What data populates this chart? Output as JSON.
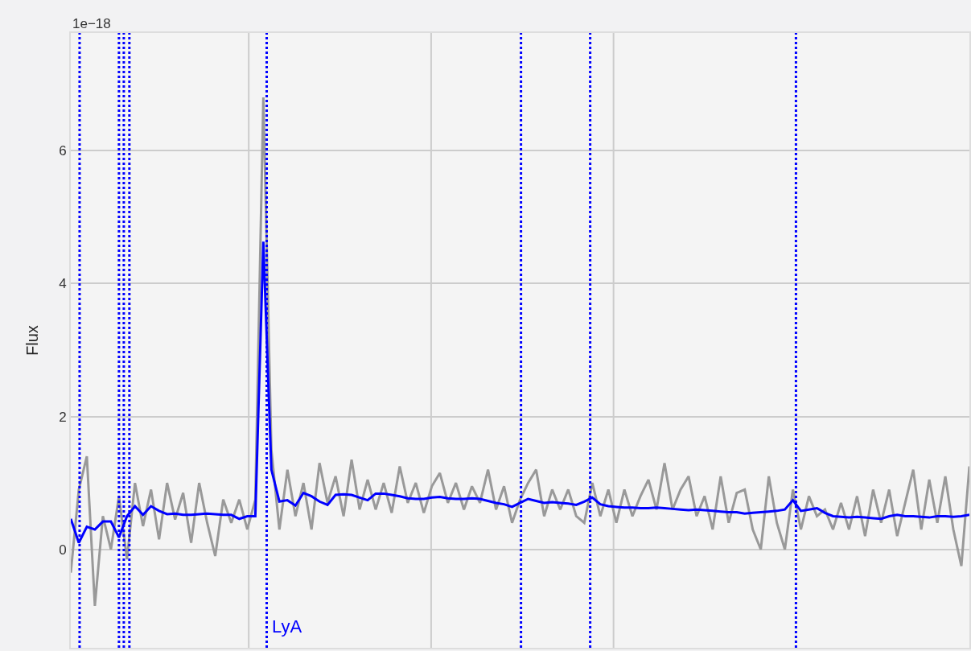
{
  "chart_data": {
    "type": "line",
    "ylabel": "Flux",
    "annotations": [
      "1e−18"
    ],
    "categories": [
      null,
      null,
      null,
      null,
      null,
      null,
      null,
      null,
      null,
      null,
      null,
      null,
      null,
      null,
      null,
      null,
      null,
      null,
      null,
      null,
      null,
      null,
      null,
      null,
      null,
      null,
      null,
      null,
      null,
      null,
      null,
      null,
      null,
      null,
      null,
      null,
      null,
      null,
      null,
      null,
      null,
      null,
      null,
      null,
      null,
      null,
      null,
      null,
      null,
      null,
      null,
      null,
      null,
      null,
      null,
      null,
      null,
      null,
      null,
      null,
      null,
      null,
      null,
      null,
      null,
      null,
      null,
      null,
      null,
      null,
      null,
      null,
      null,
      null,
      null,
      null,
      null,
      null,
      null,
      null,
      null,
      null,
      null,
      null,
      null,
      null,
      null,
      null,
      null,
      null,
      null,
      null,
      null,
      null,
      null,
      null,
      null,
      null,
      null,
      null,
      null,
      null,
      null,
      null,
      null,
      null,
      null,
      null,
      null,
      null,
      null,
      null,
      null
    ],
    "ylim": [
      -1.48,
      7.77
    ],
    "yticks": [
      0,
      2,
      4,
      6
    ],
    "tick_labels": "y",
    "grid": true,
    "line_style": "solid",
    "series": [
      {
        "color": "#999999",
        "values": [
          -0.35,
          0.9,
          1.4,
          -0.85,
          0.5,
          0.0,
          0.8,
          -0.15,
          1.0,
          0.35,
          0.9,
          0.15,
          1.0,
          0.45,
          0.85,
          0.1,
          1.0,
          0.4,
          -0.1,
          0.75,
          0.4,
          0.75,
          0.3,
          0.75,
          6.8,
          1.5,
          0.3,
          1.2,
          0.5,
          1.0,
          0.3,
          1.3,
          0.7,
          1.1,
          0.5,
          1.35,
          0.6,
          1.05,
          0.6,
          1.0,
          0.55,
          1.25,
          0.7,
          1.0,
          0.55,
          0.95,
          1.15,
          0.7,
          1.0,
          0.6,
          0.95,
          0.7,
          1.2,
          0.6,
          0.95,
          0.4,
          0.75,
          1.0,
          1.2,
          0.5,
          0.9,
          0.6,
          0.9,
          0.5,
          0.4,
          1.0,
          0.5,
          0.9,
          0.4,
          0.9,
          0.5,
          0.8,
          1.05,
          0.6,
          1.3,
          0.6,
          0.9,
          1.1,
          0.5,
          0.8,
          0.3,
          1.1,
          0.4,
          0.85,
          0.9,
          0.3,
          0.0,
          1.1,
          0.4,
          0.0,
          0.9,
          0.3,
          0.8,
          0.5,
          0.6,
          0.3,
          0.7,
          0.3,
          0.8,
          0.2,
          0.9,
          0.4,
          0.9,
          0.2,
          0.7,
          1.2,
          0.3,
          1.05,
          0.4,
          1.1,
          0.3,
          -0.25,
          1.25
        ]
      },
      {
        "color": "#0000ff",
        "values": [
          0.46,
          0.1,
          0.34,
          0.3,
          0.42,
          0.42,
          0.18,
          0.5,
          0.65,
          0.52,
          0.65,
          0.58,
          0.53,
          0.54,
          0.52,
          0.52,
          0.53,
          0.54,
          0.53,
          0.52,
          0.52,
          0.46,
          0.5,
          0.5,
          4.63,
          1.2,
          0.72,
          0.74,
          0.66,
          0.85,
          0.8,
          0.72,
          0.67,
          0.82,
          0.83,
          0.82,
          0.78,
          0.74,
          0.84,
          0.84,
          0.82,
          0.8,
          0.77,
          0.76,
          0.76,
          0.78,
          0.79,
          0.77,
          0.76,
          0.76,
          0.77,
          0.76,
          0.73,
          0.7,
          0.68,
          0.64,
          0.7,
          0.76,
          0.73,
          0.7,
          0.71,
          0.7,
          0.69,
          0.67,
          0.72,
          0.78,
          0.68,
          0.65,
          0.64,
          0.63,
          0.63,
          0.62,
          0.62,
          0.63,
          0.62,
          0.61,
          0.6,
          0.59,
          0.6,
          0.59,
          0.58,
          0.57,
          0.56,
          0.56,
          0.54,
          0.55,
          0.56,
          0.57,
          0.58,
          0.6,
          0.74,
          0.58,
          0.6,
          0.62,
          0.55,
          0.5,
          0.49,
          0.48,
          0.49,
          0.48,
          0.47,
          0.46,
          0.5,
          0.52,
          0.5,
          0.5,
          0.49,
          0.48,
          0.5,
          0.5,
          0.49,
          0.5,
          0.52
        ]
      }
    ],
    "ref_lines": [
      {
        "axis": "x",
        "color": "#0000ff",
        "line_style": "dotted"
      },
      {
        "axis": "x",
        "color": "#0000ff",
        "line_style": "dotted"
      },
      {
        "axis": "x",
        "color": "#0000ff",
        "line_style": "dotted"
      },
      {
        "axis": "x",
        "color": "#0000ff",
        "line_style": "dotted"
      },
      {
        "axis": "x",
        "label": "LyA",
        "color": "#0000ff",
        "line_style": "dotted"
      },
      {
        "axis": "x",
        "color": "#0000ff",
        "line_style": "dotted"
      },
      {
        "axis": "x",
        "color": "#0000ff",
        "line_style": "dotted"
      },
      {
        "axis": "x",
        "color": "#0000ff",
        "line_style": "dotted"
      }
    ]
  }
}
